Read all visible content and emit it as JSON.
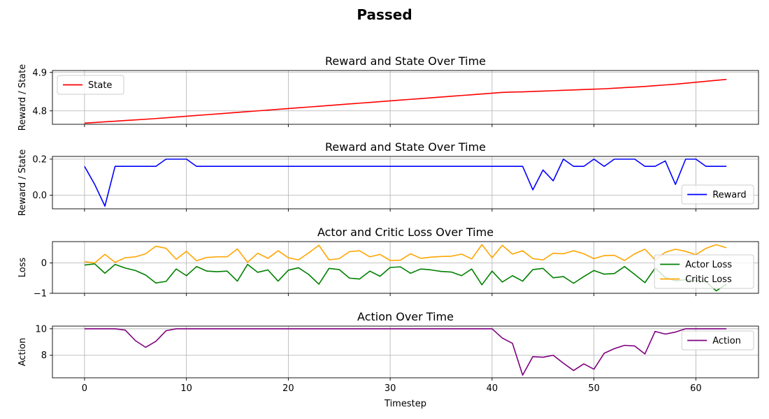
{
  "figure": {
    "title": "Passed"
  },
  "chart_data": [
    {
      "type": "line",
      "title": "Reward and State Over Time",
      "xlabel": "",
      "ylabel": "Reward / State",
      "xlim": [
        -3.15,
        66.15
      ],
      "ylim": [
        4.765,
        4.905
      ],
      "yticks": [
        4.8,
        4.9
      ],
      "ytick_labels": [
        "4.8",
        "4.9"
      ],
      "xticks": [
        0,
        10,
        20,
        30,
        40,
        50,
        60
      ],
      "show_xtick_labels": false,
      "grid": true,
      "legend": "upper-left",
      "series": [
        {
          "name": "State",
          "color": "#ff0000",
          "x": [
            0,
            1,
            2,
            3,
            4,
            5,
            6,
            7,
            8,
            9,
            10,
            11,
            12,
            13,
            14,
            15,
            16,
            17,
            18,
            19,
            20,
            21,
            22,
            23,
            24,
            25,
            26,
            27,
            28,
            29,
            30,
            31,
            32,
            33,
            34,
            35,
            36,
            37,
            38,
            39,
            40,
            41,
            42,
            43,
            44,
            45,
            46,
            47,
            48,
            49,
            50,
            51,
            52,
            53,
            54,
            55,
            56,
            57,
            58,
            59,
            60,
            61,
            62,
            63
          ],
          "values": [
            4.768,
            4.7697,
            4.7714,
            4.7731,
            4.7748,
            4.7765,
            4.7782,
            4.78,
            4.782,
            4.784,
            4.786,
            4.788,
            4.79,
            4.792,
            4.794,
            4.796,
            4.798,
            4.8,
            4.802,
            4.804,
            4.806,
            4.808,
            4.81,
            4.812,
            4.814,
            4.816,
            4.818,
            4.82,
            4.822,
            4.824,
            4.826,
            4.828,
            4.83,
            4.832,
            4.834,
            4.836,
            4.838,
            4.84,
            4.842,
            4.844,
            4.846,
            4.848,
            4.849,
            4.8495,
            4.8505,
            4.8515,
            4.8525,
            4.8535,
            4.8545,
            4.8555,
            4.8565,
            4.8575,
            4.859,
            4.8605,
            4.862,
            4.8635,
            4.8655,
            4.8675,
            4.8695,
            4.872,
            4.8745,
            4.877,
            4.8795,
            4.882
          ]
        }
      ]
    },
    {
      "type": "line",
      "title": "Reward and State Over Time",
      "xlabel": "",
      "ylabel": "Reward / State",
      "xlim": [
        -3.15,
        66.15
      ],
      "ylim": [
        -0.075,
        0.215
      ],
      "yticks": [
        0.0,
        0.2
      ],
      "ytick_labels": [
        "0.0",
        "0.2"
      ],
      "xticks": [
        0,
        10,
        20,
        30,
        40,
        50,
        60
      ],
      "show_xtick_labels": false,
      "grid": true,
      "legend": "lower-right",
      "series": [
        {
          "name": "Reward",
          "color": "#0000ff",
          "x": [
            0,
            1,
            2,
            3,
            4,
            5,
            6,
            7,
            8,
            9,
            10,
            11,
            12,
            13,
            14,
            15,
            16,
            17,
            18,
            19,
            20,
            21,
            22,
            23,
            24,
            25,
            26,
            27,
            28,
            29,
            30,
            31,
            32,
            33,
            34,
            35,
            36,
            37,
            38,
            39,
            40,
            41,
            42,
            43,
            44,
            45,
            46,
            47,
            48,
            49,
            50,
            51,
            52,
            53,
            54,
            55,
            56,
            57,
            58,
            59,
            60,
            61,
            62,
            63
          ],
          "values": [
            0.16,
            0.06,
            -0.06,
            0.16,
            0.16,
            0.16,
            0.16,
            0.16,
            0.2,
            0.2,
            0.2,
            0.16,
            0.16,
            0.16,
            0.16,
            0.16,
            0.16,
            0.16,
            0.16,
            0.16,
            0.16,
            0.16,
            0.16,
            0.16,
            0.16,
            0.16,
            0.16,
            0.16,
            0.16,
            0.16,
            0.16,
            0.16,
            0.16,
            0.16,
            0.16,
            0.16,
            0.16,
            0.16,
            0.16,
            0.16,
            0.16,
            0.16,
            0.16,
            0.16,
            0.03,
            0.14,
            0.08,
            0.2,
            0.16,
            0.16,
            0.2,
            0.16,
            0.2,
            0.2,
            0.2,
            0.16,
            0.16,
            0.19,
            0.06,
            0.2,
            0.2,
            0.16,
            0.16,
            0.16
          ]
        }
      ]
    },
    {
      "type": "line",
      "title": "Actor and Critic Loss Over Time",
      "xlabel": "",
      "ylabel": "Loss",
      "xlim": [
        -3.15,
        66.15
      ],
      "ylim": [
        -1.0,
        0.7
      ],
      "yticks": [
        -1,
        0
      ],
      "ytick_labels": [
        "−1",
        "0"
      ],
      "xticks": [
        0,
        10,
        20,
        30,
        40,
        50,
        60
      ],
      "show_xtick_labels": false,
      "grid": true,
      "legend": "lower-right",
      "series": [
        {
          "name": "Actor Loss",
          "color": "#008000",
          "x": [
            0,
            1,
            2,
            3,
            4,
            5,
            6,
            7,
            8,
            9,
            10,
            11,
            12,
            13,
            14,
            15,
            16,
            17,
            18,
            19,
            20,
            21,
            22,
            23,
            24,
            25,
            26,
            27,
            28,
            29,
            30,
            31,
            32,
            33,
            34,
            35,
            36,
            37,
            38,
            39,
            40,
            41,
            42,
            43,
            44,
            45,
            46,
            47,
            48,
            49,
            50,
            51,
            52,
            53,
            54,
            55,
            56,
            57,
            58,
            59,
            60,
            61,
            62,
            63
          ],
          "values": [
            -0.07,
            -0.03,
            -0.34,
            -0.05,
            -0.17,
            -0.25,
            -0.4,
            -0.66,
            -0.61,
            -0.2,
            -0.42,
            -0.12,
            -0.27,
            -0.29,
            -0.27,
            -0.6,
            -0.05,
            -0.31,
            -0.23,
            -0.6,
            -0.24,
            -0.16,
            -0.38,
            -0.7,
            -0.18,
            -0.22,
            -0.5,
            -0.53,
            -0.27,
            -0.44,
            -0.15,
            -0.13,
            -0.34,
            -0.2,
            -0.23,
            -0.28,
            -0.3,
            -0.42,
            -0.2,
            -0.72,
            -0.27,
            -0.63,
            -0.42,
            -0.6,
            -0.22,
            -0.18,
            -0.49,
            -0.45,
            -0.67,
            -0.45,
            -0.25,
            -0.37,
            -0.35,
            -0.12,
            -0.38,
            -0.65,
            -0.17,
            -0.48,
            -0.59,
            -0.55,
            -0.58,
            -0.62,
            -0.92,
            -0.7
          ]
        },
        {
          "name": "Critic Loss",
          "color": "#ffa500",
          "x": [
            0,
            1,
            2,
            3,
            4,
            5,
            6,
            7,
            8,
            9,
            10,
            11,
            12,
            13,
            14,
            15,
            16,
            17,
            18,
            19,
            20,
            21,
            22,
            23,
            24,
            25,
            26,
            27,
            28,
            29,
            30,
            31,
            32,
            33,
            34,
            35,
            36,
            37,
            38,
            39,
            40,
            41,
            42,
            43,
            44,
            45,
            46,
            47,
            48,
            49,
            50,
            51,
            52,
            53,
            54,
            55,
            56,
            57,
            58,
            59,
            60,
            61,
            62,
            63
          ],
          "values": [
            0.04,
            0.0,
            0.28,
            0.02,
            0.17,
            0.2,
            0.3,
            0.55,
            0.48,
            0.12,
            0.38,
            0.07,
            0.18,
            0.2,
            0.2,
            0.46,
            0.02,
            0.32,
            0.15,
            0.4,
            0.17,
            0.1,
            0.33,
            0.58,
            0.1,
            0.14,
            0.37,
            0.4,
            0.2,
            0.28,
            0.08,
            0.09,
            0.3,
            0.15,
            0.19,
            0.21,
            0.22,
            0.29,
            0.13,
            0.6,
            0.17,
            0.58,
            0.29,
            0.4,
            0.14,
            0.1,
            0.32,
            0.3,
            0.4,
            0.3,
            0.14,
            0.24,
            0.25,
            0.08,
            0.3,
            0.45,
            0.1,
            0.35,
            0.45,
            0.38,
            0.27,
            0.48,
            0.6,
            0.5
          ]
        }
      ]
    },
    {
      "type": "line",
      "title": "Action Over Time",
      "xlabel": "Timestep",
      "ylabel": "Action",
      "xlim": [
        -3.15,
        66.15
      ],
      "ylim": [
        6.3,
        10.2
      ],
      "yticks": [
        8,
        10
      ],
      "ytick_labels": [
        "8",
        "10"
      ],
      "xticks": [
        0,
        10,
        20,
        30,
        40,
        50,
        60
      ],
      "xtick_labels": [
        "0",
        "10",
        "20",
        "30",
        "40",
        "50",
        "60"
      ],
      "show_xtick_labels": true,
      "grid": true,
      "legend": "upper-right",
      "series": [
        {
          "name": "Action",
          "color": "#800080",
          "x": [
            0,
            1,
            2,
            3,
            4,
            5,
            6,
            7,
            8,
            9,
            10,
            11,
            12,
            13,
            14,
            15,
            16,
            17,
            18,
            19,
            20,
            21,
            22,
            23,
            24,
            25,
            26,
            27,
            28,
            29,
            30,
            31,
            32,
            33,
            34,
            35,
            36,
            37,
            38,
            39,
            40,
            41,
            42,
            43,
            44,
            45,
            46,
            47,
            48,
            49,
            50,
            51,
            52,
            53,
            54,
            55,
            56,
            57,
            58,
            59,
            60,
            61,
            62,
            63
          ],
          "values": [
            10,
            10,
            10,
            10,
            9.9,
            9.1,
            8.6,
            9.05,
            9.85,
            10,
            10,
            10,
            10,
            10,
            10,
            10,
            10,
            10,
            10,
            10,
            10,
            10,
            10,
            10,
            10,
            10,
            10,
            10,
            10,
            10,
            10,
            10,
            10,
            10,
            10,
            10,
            10,
            10,
            10,
            10,
            10,
            9.3,
            8.9,
            6.5,
            7.9,
            7.85,
            8.0,
            7.4,
            6.85,
            7.35,
            6.95,
            8.15,
            8.5,
            8.75,
            8.7,
            8.1,
            9.8,
            9.6,
            9.75,
            10.0,
            10,
            10,
            10,
            10
          ]
        }
      ]
    }
  ]
}
